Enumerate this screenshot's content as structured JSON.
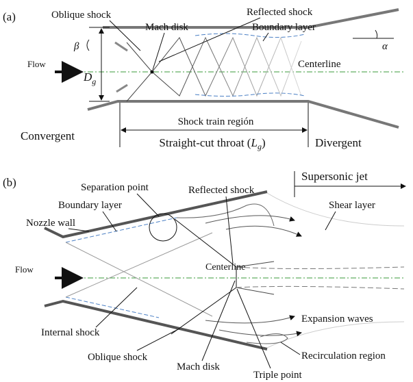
{
  "panel_a": {
    "tag": "(a)",
    "oblique_shock": "Oblique shock",
    "reflected_shock": "Reflected shock",
    "mach_disk": "Mach disk",
    "boundary_layer": "Boundary layer",
    "beta": "β",
    "alpha": "α",
    "flow": "Flow",
    "throat_height": {
      "symbol": "D",
      "subscript": "g"
    },
    "centerline": "Centerline",
    "shock_train": "Shock train región",
    "convergent": "Convergent",
    "throat": {
      "text": "Straight-cut throat (",
      "symbol": "L",
      "subscript": "g",
      "close": ")"
    },
    "divergent": "Divergent"
  },
  "panel_b": {
    "tag": "(b)",
    "supersonic_jet": "Supersonic jet",
    "separation_point": "Separation point",
    "reflected_shock": "Reflected shock",
    "boundary_layer": "Boundary layer",
    "nozzle_wall": "Nozzle wall",
    "shear_layer": "Shear layer",
    "flow": "Flow",
    "centerline": "Centerline",
    "internal_shock": "Internal shock",
    "expansion_waves": "Expansion waves",
    "oblique_shock": "Oblique shock",
    "mach_disk": "Mach disk",
    "recirculation_region": "Recirculation region",
    "triple_point": "Triple point"
  }
}
